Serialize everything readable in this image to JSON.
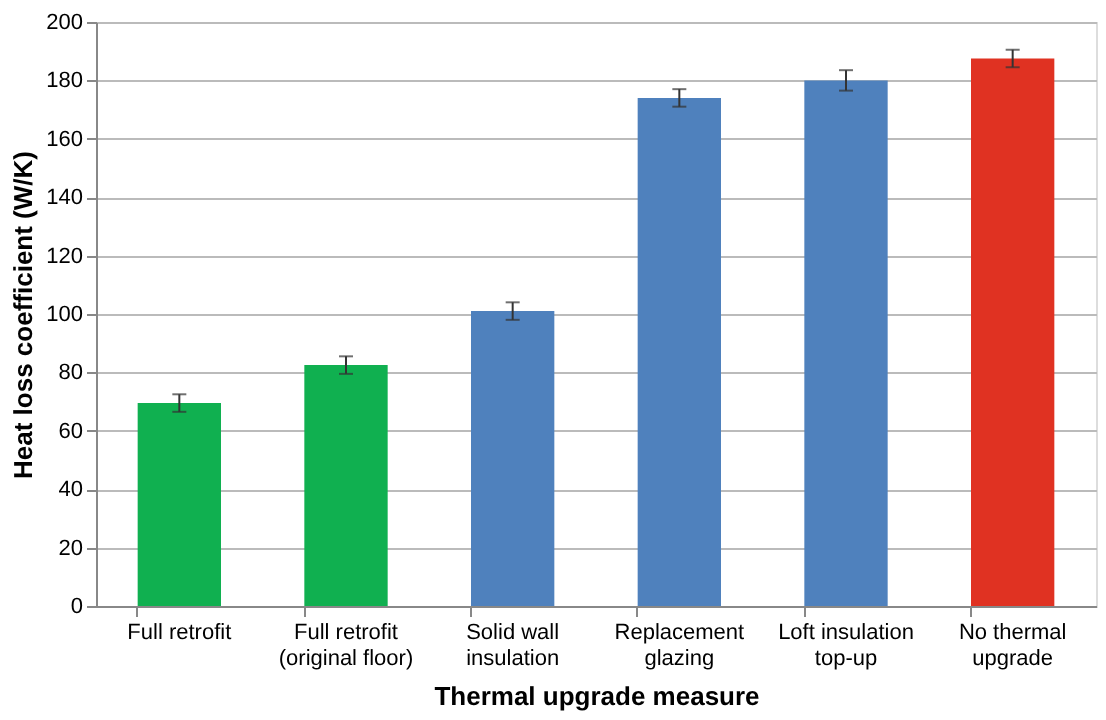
{
  "chart_data": {
    "type": "bar",
    "xlabel": "Thermal upgrade measure",
    "ylabel": "Heat loss coefficient (W/K)",
    "categories": [
      "Full retrofit",
      "Full retrofit (original floor)",
      "Solid wall insulation",
      "Replacement glazing",
      "Loft insulation top-up",
      "No thermal upgrade"
    ],
    "values": [
      69.5,
      82.5,
      101,
      174,
      180,
      187.5
    ],
    "errors": [
      3,
      3,
      3,
      3,
      3.5,
      3
    ],
    "colors": [
      "#10b050",
      "#10b050",
      "#4f81bd",
      "#4f81bd",
      "#4f81bd",
      "#e03222"
    ],
    "ylim": [
      0,
      200
    ],
    "yticks": [
      0,
      20,
      40,
      60,
      80,
      100,
      120,
      140,
      160,
      180,
      200
    ],
    "grid": "y"
  }
}
